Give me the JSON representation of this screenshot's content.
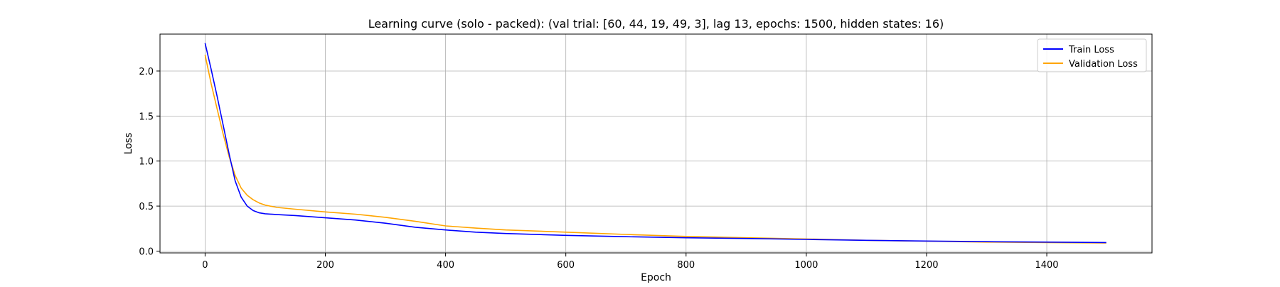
{
  "chart_data": {
    "type": "line",
    "title": "Learning curve (solo - packed): (val trial: [60, 44, 19, 49, 3], lag 13, epochs: 1500, hidden states: 16)",
    "xlabel": "Epoch",
    "ylabel": "Loss",
    "xlim": [
      -75,
      1575
    ],
    "ylim": [
      -0.02,
      2.41
    ],
    "xticks": [
      0,
      200,
      400,
      600,
      800,
      1000,
      1200,
      1400
    ],
    "yticks": [
      0.0,
      0.5,
      1.0,
      1.5,
      2.0
    ],
    "xtick_labels": [
      "0",
      "200",
      "400",
      "600",
      "800",
      "1000",
      "1200",
      "1400"
    ],
    "ytick_labels": [
      "0.0",
      "0.5",
      "1.0",
      "1.5",
      "2.0"
    ],
    "grid": true,
    "legend_position": "top-right",
    "series": [
      {
        "name": "Train Loss",
        "color": "#0000ff",
        "points": [
          [
            0,
            2.31
          ],
          [
            10,
            2.02
          ],
          [
            20,
            1.72
          ],
          [
            30,
            1.4
          ],
          [
            40,
            1.08
          ],
          [
            50,
            0.78
          ],
          [
            60,
            0.6
          ],
          [
            70,
            0.5
          ],
          [
            80,
            0.45
          ],
          [
            90,
            0.425
          ],
          [
            100,
            0.415
          ],
          [
            120,
            0.405
          ],
          [
            150,
            0.395
          ],
          [
            200,
            0.37
          ],
          [
            250,
            0.345
          ],
          [
            300,
            0.31
          ],
          [
            350,
            0.265
          ],
          [
            400,
            0.235
          ],
          [
            450,
            0.21
          ],
          [
            500,
            0.195
          ],
          [
            600,
            0.175
          ],
          [
            700,
            0.16
          ],
          [
            800,
            0.148
          ],
          [
            900,
            0.14
          ],
          [
            1000,
            0.13
          ],
          [
            1100,
            0.12
          ],
          [
            1200,
            0.112
          ],
          [
            1300,
            0.105
          ],
          [
            1400,
            0.1
          ],
          [
            1499,
            0.095
          ]
        ]
      },
      {
        "name": "Validation Loss",
        "color": "#ffa500",
        "points": [
          [
            0,
            2.18
          ],
          [
            10,
            1.86
          ],
          [
            20,
            1.58
          ],
          [
            30,
            1.3
          ],
          [
            40,
            1.05
          ],
          [
            50,
            0.84
          ],
          [
            60,
            0.7
          ],
          [
            70,
            0.62
          ],
          [
            80,
            0.57
          ],
          [
            90,
            0.535
          ],
          [
            100,
            0.51
          ],
          [
            120,
            0.485
          ],
          [
            150,
            0.465
          ],
          [
            200,
            0.435
          ],
          [
            250,
            0.41
          ],
          [
            300,
            0.375
          ],
          [
            350,
            0.33
          ],
          [
            400,
            0.28
          ],
          [
            450,
            0.255
          ],
          [
            500,
            0.235
          ],
          [
            600,
            0.21
          ],
          [
            700,
            0.185
          ],
          [
            800,
            0.163
          ],
          [
            900,
            0.148
          ],
          [
            1000,
            0.135
          ],
          [
            1100,
            0.12
          ],
          [
            1200,
            0.11
          ],
          [
            1300,
            0.1
          ],
          [
            1400,
            0.095
          ],
          [
            1499,
            0.09
          ]
        ]
      }
    ]
  }
}
